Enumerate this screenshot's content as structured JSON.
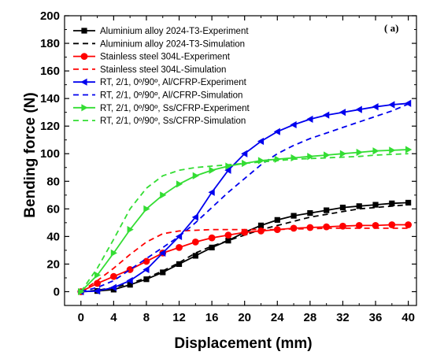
{
  "chart_data": {
    "type": "line",
    "panel_label": "( a)",
    "xlabel": "Displacement (mm)",
    "ylabel": "Bending force (N)",
    "xlim": [
      -2,
      41
    ],
    "ylim": [
      -10,
      200
    ],
    "xticks": [
      0,
      4,
      8,
      12,
      16,
      20,
      24,
      28,
      32,
      36,
      40
    ],
    "yticks": [
      0,
      20,
      40,
      60,
      80,
      100,
      120,
      140,
      160,
      180,
      200
    ],
    "grid": false,
    "legend_position": "top-left",
    "series": [
      {
        "name": "Aluminium alloy 2024-T3-Experiment",
        "color": "#000000",
        "line": "solid",
        "marker": "square",
        "x": [
          0,
          2,
          4,
          6,
          8,
          10,
          12,
          14,
          16,
          18,
          20,
          22,
          24,
          26,
          28,
          30,
          32,
          34,
          36,
          38,
          40
        ],
        "y": [
          0,
          0.5,
          1.5,
          5,
          9,
          14,
          20,
          26,
          32,
          37,
          43,
          48,
          52,
          55,
          57,
          59,
          61,
          62,
          63,
          64,
          64.5
        ]
      },
      {
        "name": "Aluminium alloy 2024-T3-Simulation",
        "color": "#000000",
        "line": "dashed",
        "marker": "none",
        "x": [
          0,
          2,
          4,
          6,
          8,
          10,
          12,
          14,
          16,
          18,
          20,
          22,
          24,
          26,
          28,
          30,
          32,
          34,
          36,
          38,
          40
        ],
        "y": [
          0,
          1,
          3,
          6,
          10,
          15,
          21,
          28,
          33,
          37,
          41,
          45,
          48,
          51,
          54,
          56,
          58,
          60,
          61,
          62,
          63
        ]
      },
      {
        "name": "Stainless steel 304L-Experiment",
        "color": "#ff0000",
        "line": "solid",
        "marker": "circle",
        "x": [
          0,
          2,
          4,
          6,
          8,
          10,
          12,
          14,
          16,
          18,
          20,
          22,
          24,
          26,
          28,
          30,
          32,
          34,
          36,
          38,
          40
        ],
        "y": [
          0,
          6,
          11,
          16,
          22,
          28,
          32,
          36,
          39,
          41,
          43,
          44,
          45,
          46,
          46.5,
          47,
          47.5,
          48,
          48,
          48.5,
          48.5
        ]
      },
      {
        "name": "Stainless steel 304L-Simulation",
        "color": "#ff0000",
        "line": "dashed",
        "marker": "none",
        "x": [
          0,
          2,
          4,
          6,
          8,
          10,
          12,
          14,
          16,
          18,
          20,
          22,
          24,
          26,
          28,
          30,
          32,
          34,
          36,
          38,
          40
        ],
        "y": [
          0,
          8,
          17,
          27,
          36,
          42,
          44,
          44.5,
          45,
          45,
          45,
          45,
          45,
          45.5,
          45.5,
          46,
          46,
          46,
          46,
          46,
          46
        ]
      },
      {
        "name": "RT, 2/1, 0º/90º, Al/CFRP-Experiment",
        "color": "#0000ee",
        "line": "solid",
        "marker": "triangle-left",
        "x": [
          0,
          2,
          4,
          6,
          8,
          10,
          12,
          14,
          16,
          18,
          20,
          22,
          24,
          26,
          28,
          30,
          32,
          34,
          36,
          38,
          40
        ],
        "y": [
          0,
          0.5,
          3,
          8,
          16,
          28,
          40,
          54,
          72,
          88,
          100,
          109,
          116,
          121,
          125,
          128,
          130,
          132,
          134,
          135.5,
          136.5
        ]
      },
      {
        "name": "RT, 2/1, 0º/90º, Al/CFRP-Simulation",
        "color": "#0000ee",
        "line": "dashed",
        "marker": "none",
        "x": [
          0,
          2,
          4,
          6,
          8,
          10,
          12,
          14,
          16,
          18,
          20,
          22,
          24,
          26,
          28,
          30,
          32,
          34,
          36,
          38,
          40
        ],
        "y": [
          0,
          3,
          8,
          16,
          24,
          32,
          40,
          50,
          61,
          72,
          82,
          92,
          100,
          106,
          111,
          115,
          119,
          123,
          127,
          131,
          136
        ]
      },
      {
        "name": "RT, 2/1, 0º/90º, Ss/CFRP-Experiment",
        "color": "#33dd33",
        "line": "solid",
        "marker": "triangle-right",
        "x": [
          0,
          2,
          4,
          6,
          8,
          10,
          12,
          14,
          16,
          18,
          20,
          22,
          24,
          26,
          28,
          30,
          32,
          34,
          36,
          38,
          40
        ],
        "y": [
          0,
          12,
          28,
          45,
          60,
          70,
          78,
          84,
          88,
          91,
          93,
          95,
          96,
          97,
          98,
          99,
          100,
          101,
          102,
          102.5,
          103
        ]
      },
      {
        "name": "RT, 2/1, 0º/90º, Ss/CFRP-Simulation",
        "color": "#33dd33",
        "line": "dashed",
        "marker": "none",
        "x": [
          0,
          2,
          4,
          6,
          8,
          10,
          12,
          14,
          16,
          18,
          20,
          22,
          24,
          26,
          28,
          30,
          32,
          34,
          36,
          38,
          40
        ],
        "y": [
          0,
          17,
          38,
          60,
          75,
          84,
          88,
          90,
          91,
          92,
          93,
          94,
          95,
          96,
          96.5,
          97,
          97.5,
          98,
          99,
          99.5,
          100
        ]
      }
    ]
  }
}
